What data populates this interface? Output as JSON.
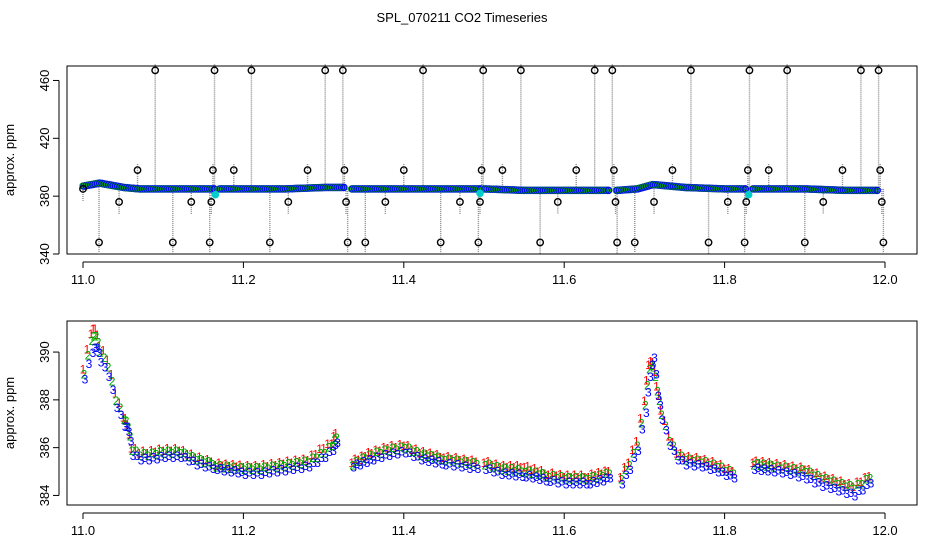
{
  "title": "SPL_070211  CO2 Timeseries",
  "colors": {
    "axis": "#000000",
    "vline": "#8a8a8a",
    "series_1": "#ff0000",
    "series_2": "#00aa00",
    "series_3": "#0000ff",
    "cyan": "#00cccc"
  },
  "chart_data": [
    {
      "type": "scatter",
      "ylabel": "approx. ppm",
      "xlim": [
        11.0,
        12.0
      ],
      "ylim": [
        340,
        470
      ],
      "xticks": [
        11.0,
        11.2,
        11.4,
        11.6,
        11.8,
        12.0
      ],
      "xtick_labels": [
        "11.0",
        "11.2",
        "11.4",
        "11.6",
        "11.8",
        "12.0"
      ],
      "yticks": [
        340,
        380,
        420,
        460
      ],
      "ytick_labels": [
        "340",
        "380",
        "420",
        "460"
      ],
      "grid": false,
      "baseline_series": {
        "name": "",
        "segments": [
          {
            "x": [
              11.0,
              11.01,
              11.02,
              11.03,
              11.04,
              11.05,
              11.07,
              11.1,
              11.165
            ],
            "y": [
              387,
              388,
              389,
              388,
              387,
              386,
              385,
              385,
              385
            ]
          },
          {
            "x": [
              11.17,
              11.2,
              11.25,
              11.3,
              11.325
            ],
            "y": [
              385,
              385,
              385,
              386,
              386
            ]
          },
          {
            "x": [
              11.335,
              11.4,
              11.45,
              11.495
            ],
            "y": [
              385,
              385,
              385,
              385
            ]
          },
          {
            "x": [
              11.5,
              11.55,
              11.6,
              11.655
            ],
            "y": [
              385,
              384,
              384,
              384
            ]
          },
          {
            "x": [
              11.665,
              11.69,
              11.71,
              11.73,
              11.75,
              11.8,
              11.825
            ],
            "y": [
              384,
              385,
              388,
              387,
              386,
              385,
              385
            ]
          },
          {
            "x": [
              11.835,
              11.9,
              11.95,
              11.99
            ],
            "y": [
              385,
              385,
              384,
              384
            ]
          }
        ]
      },
      "spikes": [
        {
          "x": 11.0,
          "y": 385
        },
        {
          "x": 11.02,
          "y": 348
        },
        {
          "x": 11.045,
          "y": 376
        },
        {
          "x": 11.068,
          "y": 398
        },
        {
          "x": 11.09,
          "y": 467
        },
        {
          "x": 11.112,
          "y": 348
        },
        {
          "x": 11.135,
          "y": 376
        },
        {
          "x": 11.158,
          "y": 348
        },
        {
          "x": 11.16,
          "y": 376
        },
        {
          "x": 11.162,
          "y": 398
        },
        {
          "x": 11.164,
          "y": 467
        },
        {
          "x": 11.188,
          "y": 398
        },
        {
          "x": 11.21,
          "y": 467
        },
        {
          "x": 11.233,
          "y": 348
        },
        {
          "x": 11.256,
          "y": 376
        },
        {
          "x": 11.28,
          "y": 398
        },
        {
          "x": 11.302,
          "y": 467
        },
        {
          "x": 11.324,
          "y": 467
        },
        {
          "x": 11.326,
          "y": 398
        },
        {
          "x": 11.328,
          "y": 376
        },
        {
          "x": 11.33,
          "y": 348
        },
        {
          "x": 11.352,
          "y": 348
        },
        {
          "x": 11.377,
          "y": 376
        },
        {
          "x": 11.4,
          "y": 398
        },
        {
          "x": 11.424,
          "y": 467
        },
        {
          "x": 11.446,
          "y": 348
        },
        {
          "x": 11.47,
          "y": 376
        },
        {
          "x": 11.493,
          "y": 348
        },
        {
          "x": 11.495,
          "y": 376
        },
        {
          "x": 11.497,
          "y": 398
        },
        {
          "x": 11.499,
          "y": 467
        },
        {
          "x": 11.523,
          "y": 398
        },
        {
          "x": 11.546,
          "y": 467
        },
        {
          "x": 11.57,
          "y": 348
        },
        {
          "x": 11.592,
          "y": 376
        },
        {
          "x": 11.615,
          "y": 398
        },
        {
          "x": 11.638,
          "y": 467
        },
        {
          "x": 11.66,
          "y": 467
        },
        {
          "x": 11.662,
          "y": 398
        },
        {
          "x": 11.664,
          "y": 376
        },
        {
          "x": 11.666,
          "y": 348
        },
        {
          "x": 11.688,
          "y": 348
        },
        {
          "x": 11.712,
          "y": 376
        },
        {
          "x": 11.735,
          "y": 398
        },
        {
          "x": 11.758,
          "y": 467
        },
        {
          "x": 11.78,
          "y": 348
        },
        {
          "x": 11.804,
          "y": 376
        },
        {
          "x": 11.825,
          "y": 348
        },
        {
          "x": 11.827,
          "y": 376
        },
        {
          "x": 11.829,
          "y": 398
        },
        {
          "x": 11.831,
          "y": 467
        },
        {
          "x": 11.855,
          "y": 398
        },
        {
          "x": 11.878,
          "y": 467
        },
        {
          "x": 11.9,
          "y": 348
        },
        {
          "x": 11.923,
          "y": 376
        },
        {
          "x": 11.947,
          "y": 398
        },
        {
          "x": 11.97,
          "y": 467
        },
        {
          "x": 11.992,
          "y": 467
        },
        {
          "x": 11.994,
          "y": 398
        },
        {
          "x": 11.996,
          "y": 376
        },
        {
          "x": 11.998,
          "y": 348
        }
      ],
      "cyan_points": [
        {
          "x": 11.165,
          "y": 381
        },
        {
          "x": 11.495,
          "y": 382
        },
        {
          "x": 11.83,
          "y": 381
        }
      ]
    },
    {
      "type": "scatter",
      "ylabel": "approx. ppm",
      "xlim": [
        11.0,
        12.0
      ],
      "ylim": [
        383.6,
        391.3
      ],
      "xticks": [
        11.0,
        11.2,
        11.4,
        11.6,
        11.8,
        12.0
      ],
      "xtick_labels": [
        "11.0",
        "11.2",
        "11.4",
        "11.6",
        "11.8",
        "12.0"
      ],
      "yticks": [
        384,
        386,
        388,
        390
      ],
      "ytick_labels": [
        "384",
        "386",
        "388",
        "390"
      ],
      "grid": false,
      "series": [
        {
          "name": "1",
          "segments": [
            {
              "x": [
                11.0,
                11.01,
                11.015,
                11.02,
                11.03,
                11.04,
                11.05,
                11.055,
                11.06,
                11.07,
                11.08,
                11.1,
                11.12,
                11.14,
                11.16
              ],
              "y": [
                389.3,
                390.8,
                391.0,
                390.3,
                389.7,
                388.3,
                387.3,
                387.0,
                386.0,
                385.8,
                385.8,
                385.9,
                385.9,
                385.6,
                385.4
              ]
            },
            {
              "x": [
                11.165,
                11.2,
                11.22,
                11.24,
                11.26,
                11.28,
                11.3,
                11.31,
                11.315
              ],
              "y": [
                385.3,
                385.2,
                385.2,
                385.3,
                385.4,
                385.5,
                386.0,
                386.2,
                386.6
              ]
            },
            {
              "x": [
                11.335,
                11.36,
                11.38,
                11.4,
                11.42,
                11.45,
                11.47,
                11.49
              ],
              "y": [
                385.4,
                385.8,
                386.0,
                386.1,
                385.8,
                385.6,
                385.5,
                385.4
              ]
            },
            {
              "x": [
                11.5,
                11.52,
                11.55,
                11.58,
                11.6,
                11.63,
                11.655
              ],
              "y": [
                385.4,
                385.2,
                385.2,
                384.9,
                384.8,
                384.8,
                385.0
              ]
            },
            {
              "x": [
                11.67,
                11.68,
                11.69,
                11.7,
                11.705,
                11.71,
                11.715,
                11.72,
                11.73,
                11.74,
                11.75,
                11.77,
                11.79,
                11.81
              ],
              "y": [
                384.8,
                385.4,
                386.3,
                388.0,
                389.5,
                389.6,
                388.6,
                387.6,
                386.5,
                385.8,
                385.6,
                385.5,
                385.3,
                385.0
              ]
            },
            {
              "x": [
                11.835,
                11.86,
                11.88,
                11.9,
                11.92,
                11.94,
                11.96,
                11.98
              ],
              "y": [
                385.4,
                385.3,
                385.2,
                385.1,
                384.8,
                384.6,
                384.4,
                384.8
              ]
            }
          ]
        },
        {
          "name": "2",
          "segments": [
            {
              "x": [
                11.0,
                11.01,
                11.015,
                11.02,
                11.03,
                11.04,
                11.05,
                11.055,
                11.06,
                11.07,
                11.08,
                11.1,
                11.12,
                11.14,
                11.16
              ],
              "y": [
                389.1,
                390.5,
                390.7,
                390.0,
                389.4,
                388.0,
                387.2,
                386.9,
                385.9,
                385.7,
                385.7,
                385.8,
                385.8,
                385.5,
                385.3
              ]
            },
            {
              "x": [
                11.165,
                11.2,
                11.22,
                11.24,
                11.26,
                11.28,
                11.3,
                11.31,
                11.315
              ],
              "y": [
                385.2,
                385.1,
                385.1,
                385.2,
                385.3,
                385.4,
                385.8,
                386.1,
                386.4
              ]
            },
            {
              "x": [
                11.335,
                11.36,
                11.38,
                11.4,
                11.42,
                11.45,
                11.47,
                11.49
              ],
              "y": [
                385.3,
                385.7,
                385.9,
                386.0,
                385.7,
                385.5,
                385.4,
                385.3
              ]
            },
            {
              "x": [
                11.5,
                11.52,
                11.55,
                11.58,
                11.6,
                11.63,
                11.655
              ],
              "y": [
                385.3,
                385.1,
                385.0,
                384.8,
                384.7,
                384.7,
                384.9
              ]
            },
            {
              "x": [
                11.67,
                11.68,
                11.69,
                11.7,
                11.705,
                11.71,
                11.715,
                11.72,
                11.73,
                11.74,
                11.75,
                11.77,
                11.79,
                11.81
              ],
              "y": [
                384.7,
                385.3,
                386.1,
                387.8,
                389.3,
                389.4,
                388.4,
                387.4,
                386.3,
                385.7,
                385.5,
                385.4,
                385.2,
                384.9
              ]
            },
            {
              "x": [
                11.835,
                11.86,
                11.88,
                11.9,
                11.92,
                11.94,
                11.96,
                11.98
              ],
              "y": [
                385.3,
                385.2,
                385.1,
                385.0,
                384.7,
                384.5,
                384.3,
                384.7
              ]
            }
          ]
        },
        {
          "name": "3",
          "segments": [
            {
              "x": [
                11.0,
                11.01,
                11.015,
                11.02,
                11.03,
                11.04,
                11.05,
                11.055,
                11.06,
                11.07,
                11.08,
                11.1,
                11.12,
                11.14,
                11.16
              ],
              "y": [
                388.9,
                390.0,
                390.2,
                389.6,
                389.0,
                387.7,
                386.9,
                386.7,
                385.7,
                385.5,
                385.5,
                385.6,
                385.6,
                385.3,
                385.1
              ]
            },
            {
              "x": [
                11.165,
                11.2,
                11.22,
                11.24,
                11.26,
                11.28,
                11.3,
                11.31,
                11.315
              ],
              "y": [
                385.1,
                384.9,
                384.9,
                385.0,
                385.1,
                385.2,
                385.6,
                385.9,
                386.2
              ]
            },
            {
              "x": [
                11.335,
                11.36,
                11.38,
                11.4,
                11.42,
                11.45,
                11.47,
                11.49
              ],
              "y": [
                385.2,
                385.5,
                385.7,
                385.8,
                385.5,
                385.3,
                385.2,
                385.1
              ]
            },
            {
              "x": [
                11.5,
                11.52,
                11.55,
                11.58,
                11.6,
                11.63,
                11.655
              ],
              "y": [
                385.1,
                384.9,
                384.8,
                384.6,
                384.5,
                384.5,
                384.7
              ]
            },
            {
              "x": [
                11.67,
                11.68,
                11.69,
                11.7,
                11.705,
                11.71,
                11.715,
                11.72,
                11.73,
                11.74,
                11.75,
                11.77,
                11.79,
                11.81
              ],
              "y": [
                384.5,
                385.1,
                385.9,
                387.5,
                389.0,
                389.8,
                388.2,
                387.2,
                386.1,
                385.5,
                385.3,
                385.2,
                385.0,
                384.7
              ]
            },
            {
              "x": [
                11.835,
                11.86,
                11.88,
                11.9,
                11.92,
                11.94,
                11.96,
                11.98
              ],
              "y": [
                385.1,
                385.0,
                384.9,
                384.7,
                384.4,
                384.2,
                384.0,
                384.5
              ]
            }
          ]
        }
      ]
    }
  ]
}
